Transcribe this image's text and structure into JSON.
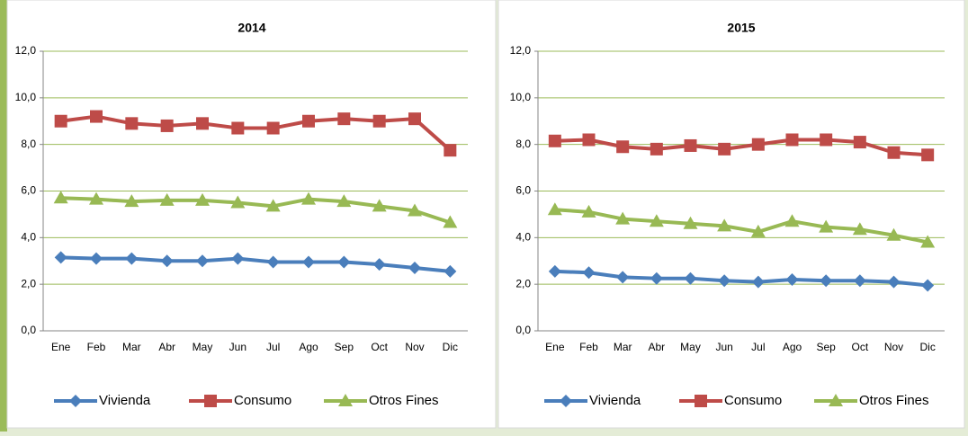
{
  "chart_data": [
    {
      "type": "line",
      "title": "2014",
      "categories": [
        "Ene",
        "Feb",
        "Mar",
        "Abr",
        "May",
        "Jun",
        "Jul",
        "Ago",
        "Sep",
        "Oct",
        "Nov",
        "Dic"
      ],
      "series": [
        {
          "name": "Vivienda",
          "color": "#4a7ebb",
          "marker": "diamond",
          "values": [
            3.15,
            3.1,
            3.1,
            3.0,
            3.0,
            3.1,
            2.95,
            2.95,
            2.95,
            2.85,
            2.7,
            2.55
          ]
        },
        {
          "name": "Consumo",
          "color": "#be4b48",
          "marker": "square",
          "values": [
            9.0,
            9.2,
            8.9,
            8.8,
            8.9,
            8.7,
            8.7,
            9.0,
            9.1,
            9.0,
            9.1,
            7.75
          ]
        },
        {
          "name": "Otros Fines",
          "color": "#98b954",
          "marker": "triangle",
          "values": [
            5.7,
            5.65,
            5.55,
            5.6,
            5.6,
            5.5,
            5.35,
            5.65,
            5.55,
            5.35,
            5.15,
            4.65
          ]
        }
      ],
      "ylim": [
        0,
        12
      ],
      "yticks": [
        {
          "value": 0,
          "label": "0,0"
        },
        {
          "value": 2,
          "label": "2,0"
        },
        {
          "value": 4,
          "label": "4,0"
        },
        {
          "value": 6,
          "label": "6,0"
        },
        {
          "value": 8,
          "label": "8,0"
        },
        {
          "value": 10,
          "label": "10,0"
        },
        {
          "value": 12,
          "label": "12,0"
        }
      ],
      "grid": true,
      "legend": "bottom"
    },
    {
      "type": "line",
      "title": "2015",
      "categories": [
        "Ene",
        "Feb",
        "Mar",
        "Abr",
        "May",
        "Jun",
        "Jul",
        "Ago",
        "Sep",
        "Oct",
        "Nov",
        "Dic"
      ],
      "series": [
        {
          "name": "Vivienda",
          "color": "#4a7ebb",
          "marker": "diamond",
          "values": [
            2.55,
            2.5,
            2.3,
            2.25,
            2.25,
            2.15,
            2.1,
            2.2,
            2.15,
            2.15,
            2.1,
            1.95
          ]
        },
        {
          "name": "Consumo",
          "color": "#be4b48",
          "marker": "square",
          "values": [
            8.15,
            8.2,
            7.9,
            7.8,
            7.95,
            7.8,
            8.0,
            8.2,
            8.2,
            8.1,
            7.65,
            7.55
          ]
        },
        {
          "name": "Otros Fines",
          "color": "#98b954",
          "marker": "triangle",
          "values": [
            5.2,
            5.1,
            4.8,
            4.7,
            4.6,
            4.5,
            4.25,
            4.7,
            4.45,
            4.35,
            4.1,
            3.8
          ]
        }
      ],
      "ylim": [
        0,
        12
      ],
      "yticks": [
        {
          "value": 0,
          "label": "0,0"
        },
        {
          "value": 2,
          "label": "2,0"
        },
        {
          "value": 4,
          "label": "4,0"
        },
        {
          "value": 6,
          "label": "6,0"
        },
        {
          "value": 8,
          "label": "8,0"
        },
        {
          "value": 10,
          "label": "10,0"
        },
        {
          "value": 12,
          "label": "12,0"
        }
      ],
      "grid": true,
      "legend": "bottom"
    }
  ]
}
